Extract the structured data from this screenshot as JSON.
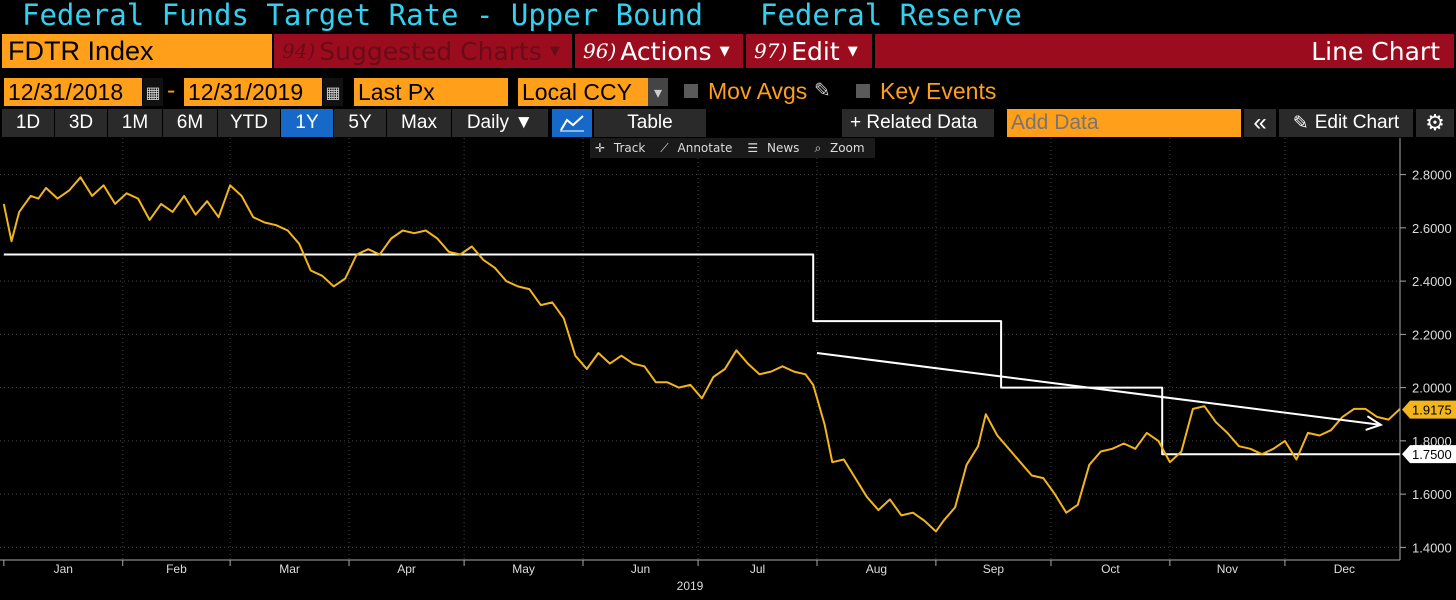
{
  "title": {
    "left": "Federal Funds Target Rate - Upper Bound",
    "right": "Federal Reserve"
  },
  "menu": {
    "ticker": "FDTR Index",
    "suggested": {
      "num": "94)",
      "label": "Suggested Charts"
    },
    "actions": {
      "num": "96)",
      "label": "Actions"
    },
    "edit": {
      "num": "97)",
      "label": "Edit"
    },
    "chart_type": "Line Chart"
  },
  "params": {
    "start_date": "12/31/2018",
    "dash": "-",
    "end_date": "12/31/2019",
    "field": "Last Px",
    "currency": "Local CCY",
    "mov_avgs": "Mov Avgs",
    "key_events": "Key Events"
  },
  "toolbar": {
    "periods": [
      "1D",
      "3D",
      "1M",
      "6M",
      "YTD",
      "1Y",
      "5Y",
      "Max"
    ],
    "selected_period": "1Y",
    "frequency": "Daily ▼",
    "table": "Table",
    "related": "+ Related Data",
    "add_data_placeholder": "Add Data",
    "collapse": "«",
    "edit_chart": "Edit Chart"
  },
  "plot_tools": [
    "Track",
    "Annotate",
    "News",
    "Zoom"
  ],
  "colors": {
    "accent": "#ff9f1a",
    "title": "#34d0f0",
    "menu": "#9b0d1e",
    "yield": "#f2b51c",
    "rate": "#ffffff"
  },
  "chart_data": {
    "type": "line",
    "x_axis": {
      "months": [
        "Jan",
        "Feb",
        "Mar",
        "Apr",
        "May",
        "Jun",
        "Jul",
        "Aug",
        "Sep",
        "Oct",
        "Nov",
        "Dec"
      ],
      "year_label": "2019",
      "range": [
        "2018-12-31",
        "2019-12-31"
      ]
    },
    "y_axis": {
      "ticks": [
        "1.4000",
        "1.6000",
        "1.8000",
        "2.0000",
        "2.2000",
        "2.4000",
        "2.6000",
        "2.8000"
      ],
      "ylim": [
        1.36,
        2.9
      ]
    },
    "last_value_labels": [
      "1.9175",
      "1.7500"
    ],
    "series": [
      {
        "color": "#ffffff",
        "step": true,
        "points": [
          [
            "2019-01-01",
            2.5
          ],
          [
            "2019-07-31",
            2.5
          ],
          [
            "2019-07-31",
            2.25
          ],
          [
            "2019-09-18",
            2.25
          ],
          [
            "2019-09-18",
            2.0
          ],
          [
            "2019-10-30",
            2.0
          ],
          [
            "2019-10-30",
            1.75
          ],
          [
            "2019-12-31",
            1.75
          ]
        ]
      },
      {
        "color": "#f2b51c",
        "points": [
          [
            "2019-01-01",
            2.69
          ],
          [
            "2019-01-03",
            2.55
          ],
          [
            "2019-01-05",
            2.66
          ],
          [
            "2019-01-08",
            2.72
          ],
          [
            "2019-01-10",
            2.71
          ],
          [
            "2019-01-12",
            2.75
          ],
          [
            "2019-01-15",
            2.71
          ],
          [
            "2019-01-18",
            2.74
          ],
          [
            "2019-01-21",
            2.79
          ],
          [
            "2019-01-24",
            2.72
          ],
          [
            "2019-01-27",
            2.76
          ],
          [
            "2019-01-30",
            2.69
          ],
          [
            "2019-02-02",
            2.73
          ],
          [
            "2019-02-05",
            2.71
          ],
          [
            "2019-02-08",
            2.63
          ],
          [
            "2019-02-11",
            2.69
          ],
          [
            "2019-02-14",
            2.66
          ],
          [
            "2019-02-17",
            2.72
          ],
          [
            "2019-02-20",
            2.65
          ],
          [
            "2019-02-23",
            2.7
          ],
          [
            "2019-02-26",
            2.64
          ],
          [
            "2019-03-01",
            2.76
          ],
          [
            "2019-03-04",
            2.72
          ],
          [
            "2019-03-07",
            2.64
          ],
          [
            "2019-03-10",
            2.62
          ],
          [
            "2019-03-13",
            2.61
          ],
          [
            "2019-03-16",
            2.59
          ],
          [
            "2019-03-19",
            2.54
          ],
          [
            "2019-03-22",
            2.44
          ],
          [
            "2019-03-25",
            2.42
          ],
          [
            "2019-03-28",
            2.38
          ],
          [
            "2019-03-31",
            2.41
          ],
          [
            "2019-04-03",
            2.5
          ],
          [
            "2019-04-06",
            2.52
          ],
          [
            "2019-04-09",
            2.5
          ],
          [
            "2019-04-12",
            2.56
          ],
          [
            "2019-04-15",
            2.59
          ],
          [
            "2019-04-18",
            2.58
          ],
          [
            "2019-04-21",
            2.59
          ],
          [
            "2019-04-24",
            2.56
          ],
          [
            "2019-04-27",
            2.51
          ],
          [
            "2019-04-30",
            2.5
          ],
          [
            "2019-05-03",
            2.53
          ],
          [
            "2019-05-06",
            2.48
          ],
          [
            "2019-05-09",
            2.45
          ],
          [
            "2019-05-12",
            2.4
          ],
          [
            "2019-05-15",
            2.38
          ],
          [
            "2019-05-18",
            2.37
          ],
          [
            "2019-05-21",
            2.31
          ],
          [
            "2019-05-24",
            2.32
          ],
          [
            "2019-05-27",
            2.26
          ],
          [
            "2019-05-30",
            2.12
          ],
          [
            "2019-06-02",
            2.07
          ],
          [
            "2019-06-05",
            2.13
          ],
          [
            "2019-06-08",
            2.09
          ],
          [
            "2019-06-11",
            2.12
          ],
          [
            "2019-06-14",
            2.09
          ],
          [
            "2019-06-17",
            2.08
          ],
          [
            "2019-06-20",
            2.02
          ],
          [
            "2019-06-23",
            2.02
          ],
          [
            "2019-06-26",
            2.0
          ],
          [
            "2019-06-29",
            2.01
          ],
          [
            "2019-07-02",
            1.96
          ],
          [
            "2019-07-05",
            2.04
          ],
          [
            "2019-07-08",
            2.07
          ],
          [
            "2019-07-11",
            2.14
          ],
          [
            "2019-07-14",
            2.09
          ],
          [
            "2019-07-17",
            2.05
          ],
          [
            "2019-07-20",
            2.06
          ],
          [
            "2019-07-23",
            2.08
          ],
          [
            "2019-07-26",
            2.06
          ],
          [
            "2019-07-29",
            2.05
          ],
          [
            "2019-07-31",
            2.01
          ],
          [
            "2019-08-03",
            1.86
          ],
          [
            "2019-08-05",
            1.72
          ],
          [
            "2019-08-08",
            1.73
          ],
          [
            "2019-08-11",
            1.66
          ],
          [
            "2019-08-14",
            1.59
          ],
          [
            "2019-08-17",
            1.54
          ],
          [
            "2019-08-20",
            1.58
          ],
          [
            "2019-08-23",
            1.52
          ],
          [
            "2019-08-26",
            1.53
          ],
          [
            "2019-08-29",
            1.5
          ],
          [
            "2019-09-01",
            1.46
          ],
          [
            "2019-09-03",
            1.5
          ],
          [
            "2019-09-06",
            1.55
          ],
          [
            "2019-09-09",
            1.71
          ],
          [
            "2019-09-12",
            1.78
          ],
          [
            "2019-09-14",
            1.9
          ],
          [
            "2019-09-17",
            1.82
          ],
          [
            "2019-09-20",
            1.77
          ],
          [
            "2019-09-23",
            1.72
          ],
          [
            "2019-09-26",
            1.67
          ],
          [
            "2019-09-29",
            1.66
          ],
          [
            "2019-10-02",
            1.6
          ],
          [
            "2019-10-05",
            1.53
          ],
          [
            "2019-10-08",
            1.56
          ],
          [
            "2019-10-11",
            1.71
          ],
          [
            "2019-10-14",
            1.76
          ],
          [
            "2019-10-17",
            1.77
          ],
          [
            "2019-10-20",
            1.79
          ],
          [
            "2019-10-23",
            1.77
          ],
          [
            "2019-10-26",
            1.83
          ],
          [
            "2019-10-29",
            1.8
          ],
          [
            "2019-11-01",
            1.72
          ],
          [
            "2019-11-04",
            1.76
          ],
          [
            "2019-11-07",
            1.92
          ],
          [
            "2019-11-10",
            1.93
          ],
          [
            "2019-11-13",
            1.87
          ],
          [
            "2019-11-16",
            1.83
          ],
          [
            "2019-11-19",
            1.78
          ],
          [
            "2019-11-22",
            1.77
          ],
          [
            "2019-11-25",
            1.75
          ],
          [
            "2019-11-28",
            1.77
          ],
          [
            "2019-12-01",
            1.8
          ],
          [
            "2019-12-04",
            1.73
          ],
          [
            "2019-12-07",
            1.83
          ],
          [
            "2019-12-10",
            1.82
          ],
          [
            "2019-12-13",
            1.84
          ],
          [
            "2019-12-16",
            1.89
          ],
          [
            "2019-12-19",
            1.92
          ],
          [
            "2019-12-22",
            1.92
          ],
          [
            "2019-12-25",
            1.89
          ],
          [
            "2019-12-28",
            1.88
          ],
          [
            "2019-12-31",
            1.92
          ]
        ]
      }
    ],
    "annotations": [
      {
        "type": "arrow",
        "color": "#ffffff",
        "from": [
          "2019-08-01",
          2.13
        ],
        "to": [
          "2019-12-26",
          1.86
        ]
      }
    ]
  }
}
